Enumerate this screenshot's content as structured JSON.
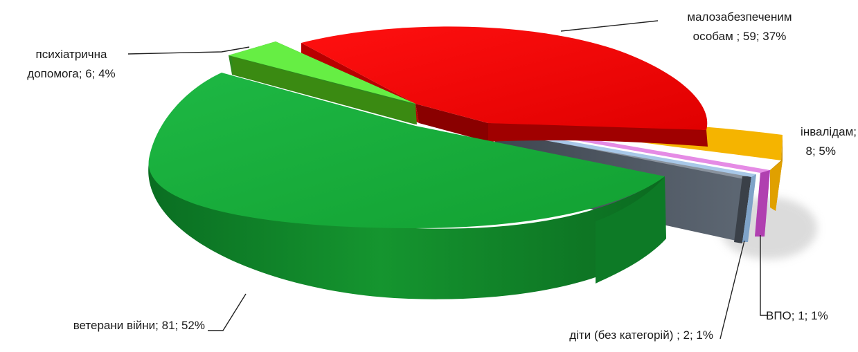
{
  "chart_data": {
    "type": "pie",
    "style": "3d-exploded",
    "title": "",
    "legend": "none",
    "slices": [
      {
        "name": "малозабезпеченим особам",
        "value": 59,
        "percent": 37,
        "color": "#ee0000",
        "label_lines": [
          "малозабезпеченим",
          "особам ; 59; 37%"
        ]
      },
      {
        "name": "інвалідам",
        "value": 8,
        "percent": 5,
        "color": "#f5b400",
        "label_lines": [
          "інвалідам;",
          "8; 5%"
        ]
      },
      {
        "name": "ВПО",
        "value": 1,
        "percent": 1,
        "color": "#e58be5",
        "label_lines": [
          "ВПО; 1; 1%"
        ]
      },
      {
        "name": "діти (без категорій)",
        "value": 2,
        "percent": 1,
        "color": "#a8c8e8",
        "label_lines": [
          "діти (без категорій) ; 2; 1%"
        ]
      },
      {
        "name": "ветерани війни",
        "value": 81,
        "percent": 52,
        "color": "#16a838",
        "label_lines": [
          "ветерани війни; 81; 52%"
        ]
      },
      {
        "name": "психіатрична допомога",
        "value": 6,
        "percent": 4,
        "color": "#66ee44",
        "label_lines": [
          "психіатрична",
          "допомога; 6; 4%"
        ]
      }
    ],
    "extra_slice": {
      "name": "",
      "color": "#5a6472",
      "label_lines": []
    }
  }
}
